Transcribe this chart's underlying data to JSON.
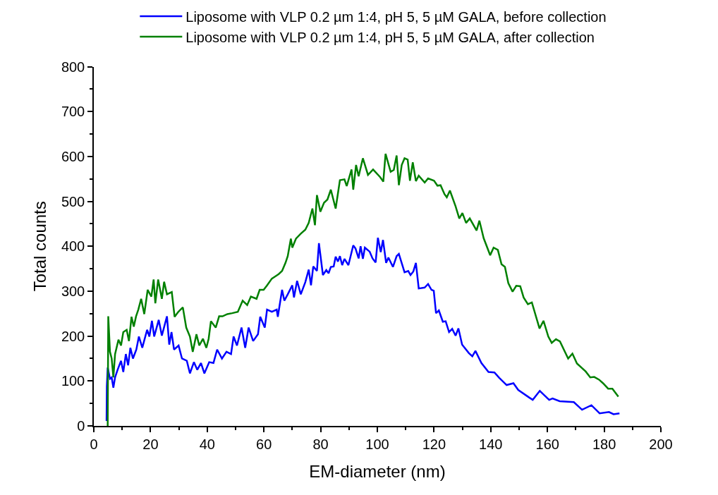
{
  "chart_data": {
    "type": "line",
    "xlabel": "EM-diameter (nm)",
    "ylabel": "Total counts",
    "xlim": [
      0,
      200
    ],
    "xticks": [
      0,
      20,
      40,
      60,
      80,
      100,
      120,
      140,
      160,
      180,
      200
    ],
    "ylim": [
      0,
      800
    ],
    "yticks": [
      0,
      100,
      200,
      300,
      400,
      500,
      600,
      700,
      800
    ],
    "legend": "top",
    "marker": "none",
    "line_style": "solid",
    "series": [
      {
        "name": "Liposome with VLP 0.2 µm 1:4, pH 5, 5 µM GALA, before collection",
        "color": "#0000ff",
        "x": [
          4.5,
          4.6,
          4.9,
          5.7,
          6.3,
          6.9,
          7.5,
          8.4,
          9.6,
          10.4,
          11.3,
          12.1,
          12.9,
          13.8,
          15,
          15.9,
          17.1,
          18.8,
          19.6,
          20.5,
          21.3,
          22.9,
          24,
          25.8,
          26.6,
          27.4,
          28.3,
          29.9,
          31.1,
          32.8,
          33.9,
          35.3,
          36.5,
          37.8,
          39,
          40.7,
          42.2,
          43.5,
          45.2,
          46.8,
          48.4,
          49.3,
          50.5,
          52.1,
          53.4,
          54.6,
          56.2,
          57.9,
          58.7,
          60.3,
          61.1,
          62.8,
          64.5,
          64.9,
          66.4,
          67.2,
          68.4,
          70,
          70.6,
          71.7,
          73,
          74.6,
          75.8,
          76.6,
          77.4,
          78.7,
          79.4,
          80.8,
          82,
          82.8,
          83.6,
          84.6,
          85.3,
          86.1,
          86.8,
          87.6,
          88.4,
          89.8,
          91.5,
          92.3,
          93.4,
          94.1,
          94.9,
          95.6,
          97.3,
          98.3,
          99.4,
          100.2,
          101.2,
          102,
          103.1,
          103.9,
          105.5,
          106.8,
          107.6,
          109.6,
          110.9,
          111.7,
          112.7,
          113.6,
          114.6,
          116.7,
          117.9,
          119.1,
          119.9,
          120.7,
          121.7,
          123.1,
          124.1,
          125.3,
          126.4,
          127.6,
          128.6,
          129.9,
          132.3,
          133.5,
          134.6,
          136.7,
          139.2,
          141.3,
          143,
          145.6,
          148,
          149.7,
          153.6,
          154.8,
          157.3,
          160.6,
          161.8,
          164.3,
          169.3,
          172.2,
          175.5,
          178.4,
          181.7,
          183.3,
          185.4
        ],
        "values": [
          11,
          88,
          130,
          105,
          108,
          85,
          108,
          125,
          145,
          120,
          160,
          135,
          174,
          150,
          170,
          199,
          174,
          214,
          199,
          234,
          199,
          236,
          201,
          244,
          181,
          209,
          170,
          179,
          150,
          145,
          117,
          142,
          125,
          140,
          117,
          142,
          140,
          170,
          150,
          165,
          160,
          199,
          179,
          219,
          174,
          219,
          189,
          204,
          243,
          219,
          259,
          254,
          259,
          243,
          303,
          279,
          293,
          313,
          286,
          323,
          293,
          320,
          348,
          313,
          355,
          345,
          407,
          336,
          347,
          340,
          354,
          355,
          377,
          366,
          378,
          358,
          372,
          358,
          402,
          395,
          373,
          400,
          372,
          397,
          388,
          373,
          364,
          419,
          387,
          414,
          363,
          375,
          354,
          378,
          383,
          342,
          345,
          336,
          344,
          363,
          306,
          308,
          316,
          303,
          301,
          251,
          257,
          232,
          233,
          209,
          216,
          201,
          217,
          181,
          162,
          155,
          167,
          140,
          120,
          119,
          107,
          91,
          95,
          80,
          63,
          58,
          78,
          58,
          61,
          55,
          53,
          36,
          46,
          28,
          31,
          26,
          28
        ]
      },
      {
        "name": "Liposome with VLP 0.2 µm 1:4, pH 5, 5 µM GALA, after collection",
        "color": "#008000",
        "x": [
          4.9,
          5.1,
          5.7,
          6.3,
          6.9,
          7.5,
          8.7,
          9.6,
          10.4,
          11.6,
          12.4,
          13.3,
          14.1,
          14.9,
          15.7,
          16.7,
          17.8,
          19,
          20.3,
          21.1,
          21.7,
          22.7,
          24,
          24.8,
          25.8,
          27.5,
          28.5,
          29.8,
          31.4,
          32.6,
          33.9,
          34.9,
          36.2,
          37.2,
          38.5,
          39.7,
          40.5,
          41.3,
          43,
          44.2,
          45.4,
          47.1,
          48.8,
          50.8,
          52.5,
          54.1,
          55.4,
          57.4,
          58.5,
          59.9,
          61.1,
          62.8,
          64,
          65.2,
          66.4,
          67.6,
          68.4,
          69.5,
          70,
          71.3,
          73,
          74.6,
          75.8,
          77.1,
          78,
          78.7,
          79.9,
          81.2,
          82.4,
          83.6,
          85.3,
          86.8,
          88.4,
          89.2,
          90.9,
          91.5,
          92.5,
          93.4,
          94.9,
          96.7,
          98.5,
          101,
          102.1,
          102.9,
          104.7,
          105.8,
          106.8,
          107.6,
          108.6,
          109.6,
          110.7,
          111.5,
          112.5,
          113.6,
          114.6,
          116.7,
          117.9,
          120,
          121.2,
          122.3,
          123.7,
          124.5,
          125.6,
          127.6,
          128.9,
          130,
          131.3,
          132.6,
          135,
          136,
          137.5,
          139.8,
          141,
          142.5,
          143.8,
          145,
          146.2,
          147.7,
          149,
          150.4,
          151.6,
          153.1,
          154.5,
          157.2,
          158.6,
          160.3,
          161.5,
          163,
          164.4,
          167.3,
          168.8,
          170.4,
          173.5,
          175.1,
          176.5,
          178.2,
          179.6,
          181.4,
          182.9,
          185
        ],
        "values": [
          0,
          244,
          165,
          150,
          108,
          160,
          192,
          179,
          209,
          214,
          189,
          243,
          221,
          244,
          259,
          283,
          249,
          303,
          288,
          326,
          273,
          326,
          283,
          321,
          293,
          298,
          243,
          254,
          264,
          219,
          199,
          165,
          204,
          179,
          194,
          174,
          194,
          233,
          219,
          244,
          244,
          249,
          251,
          254,
          279,
          269,
          288,
          283,
          303,
          303,
          313,
          328,
          333,
          338,
          345,
          363,
          378,
          417,
          397,
          417,
          428,
          437,
          452,
          484,
          447,
          514,
          477,
          497,
          504,
          526,
          484,
          547,
          549,
          534,
          571,
          526,
          581,
          556,
          596,
          559,
          571,
          554,
          544,
          606,
          566,
          570,
          602,
          536,
          581,
          596,
          593,
          546,
          587,
          545,
          557,
          542,
          551,
          546,
          535,
          536,
          516,
          509,
          524,
          489,
          462,
          474,
          452,
          462,
          435,
          457,
          418,
          380,
          397,
          392,
          360,
          354,
          318,
          299,
          312,
          311,
          286,
          271,
          275,
          217,
          234,
          199,
          185,
          193,
          188,
          150,
          161,
          139,
          121,
          108,
          109,
          103,
          95,
          83,
          83,
          65
        ]
      }
    ]
  }
}
